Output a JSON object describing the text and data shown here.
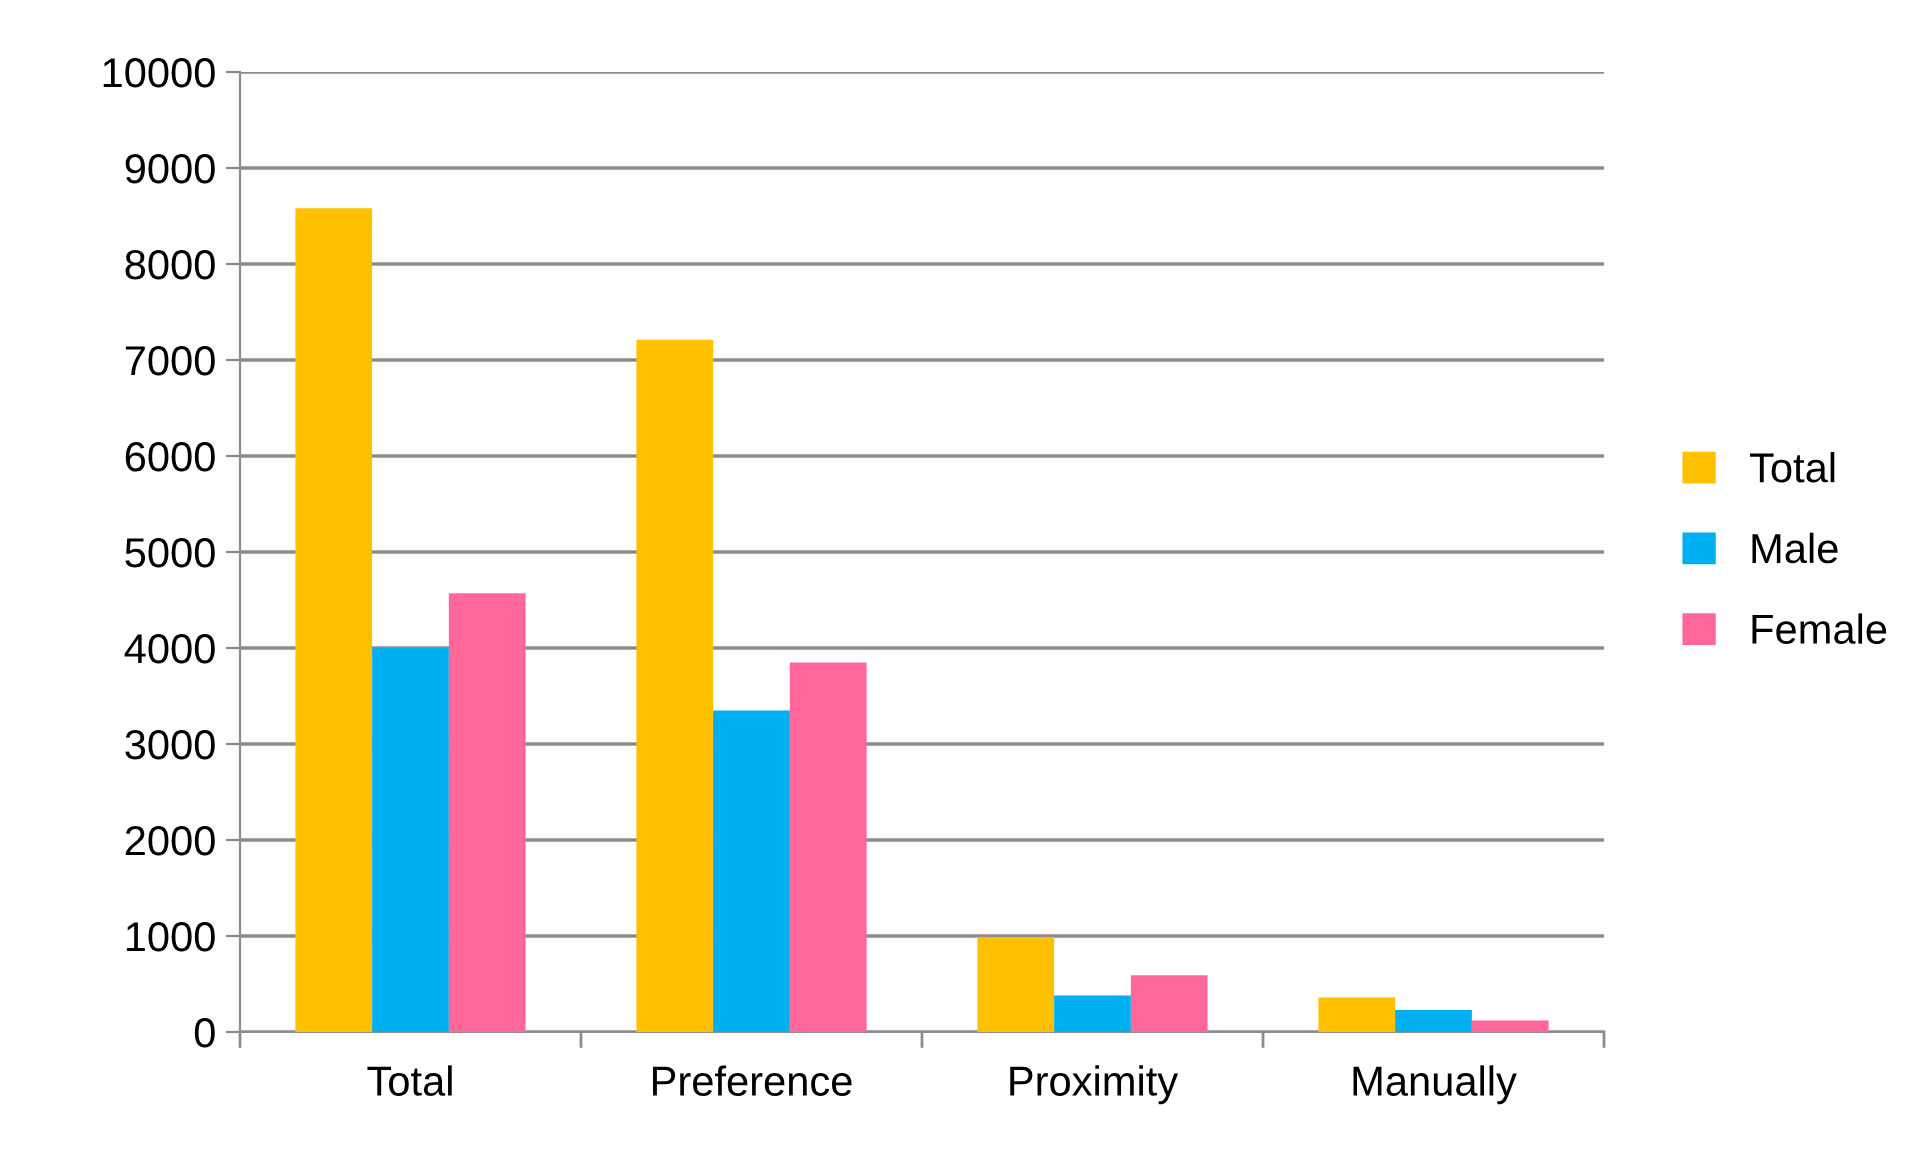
{
  "chart_data": {
    "type": "bar",
    "categories": [
      "Total",
      "Preference",
      "Proximity",
      "Manually"
    ],
    "series": [
      {
        "name": "Total",
        "color": "#ffc000",
        "values": [
          8580,
          7210,
          990,
          360
        ]
      },
      {
        "name": "Male",
        "color": "#00b0f0",
        "values": [
          4000,
          3350,
          380,
          230
        ]
      },
      {
        "name": "Female",
        "color": "#ff6699",
        "values": [
          4570,
          3850,
          590,
          120
        ]
      }
    ],
    "ylim": [
      0,
      10000
    ],
    "yticks": [
      0,
      1000,
      2000,
      3000,
      4000,
      5000,
      6000,
      7000,
      8000,
      9000,
      10000
    ],
    "grid": "y",
    "legend": "right"
  }
}
